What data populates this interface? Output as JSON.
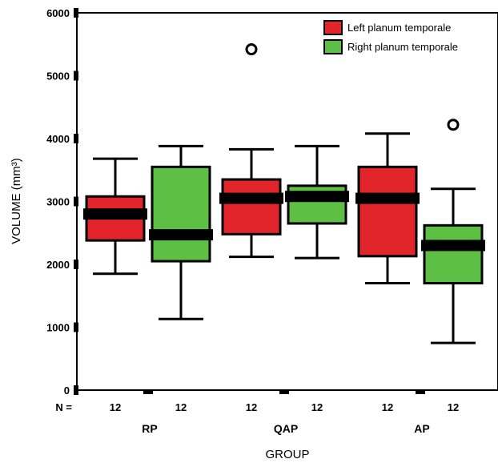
{
  "chart_data": {
    "type": "box",
    "title": "",
    "xlabel": "GROUP",
    "ylabel": "VOLUME (mm³)",
    "ylim": [
      0,
      6000
    ],
    "yticks": [
      0,
      1000,
      2000,
      3000,
      4000,
      5000,
      6000
    ],
    "categories": [
      "RP",
      "QAP",
      "AP"
    ],
    "n_label": "N =",
    "n_values": [
      [
        "12",
        "12"
      ],
      [
        "12",
        "12"
      ],
      [
        "12",
        "12"
      ]
    ],
    "legend": {
      "position": "top-right"
    },
    "series": [
      {
        "name": "Left planum temporale",
        "color": "#e1252a",
        "boxes": [
          {
            "whisker_low": 1850,
            "q1": 2380,
            "median": 2800,
            "q3": 3080,
            "whisker_high": 3680,
            "outliers": []
          },
          {
            "whisker_low": 2120,
            "q1": 2480,
            "median": 3050,
            "q3": 3350,
            "whisker_high": 3830,
            "outliers": [
              5420
            ]
          },
          {
            "whisker_low": 1700,
            "q1": 2130,
            "median": 3050,
            "q3": 3550,
            "whisker_high": 4080,
            "outliers": []
          }
        ]
      },
      {
        "name": "Right planum temporale",
        "color": "#5ebf45",
        "boxes": [
          {
            "whisker_low": 1130,
            "q1": 2050,
            "median": 2470,
            "q3": 3550,
            "whisker_high": 3880,
            "outliers": []
          },
          {
            "whisker_low": 2100,
            "q1": 2650,
            "median": 3080,
            "q3": 3250,
            "whisker_high": 3880,
            "outliers": []
          },
          {
            "whisker_low": 750,
            "q1": 1700,
            "median": 2300,
            "q3": 2620,
            "whisker_high": 3200,
            "outliers": [
              4220
            ]
          }
        ]
      }
    ]
  }
}
